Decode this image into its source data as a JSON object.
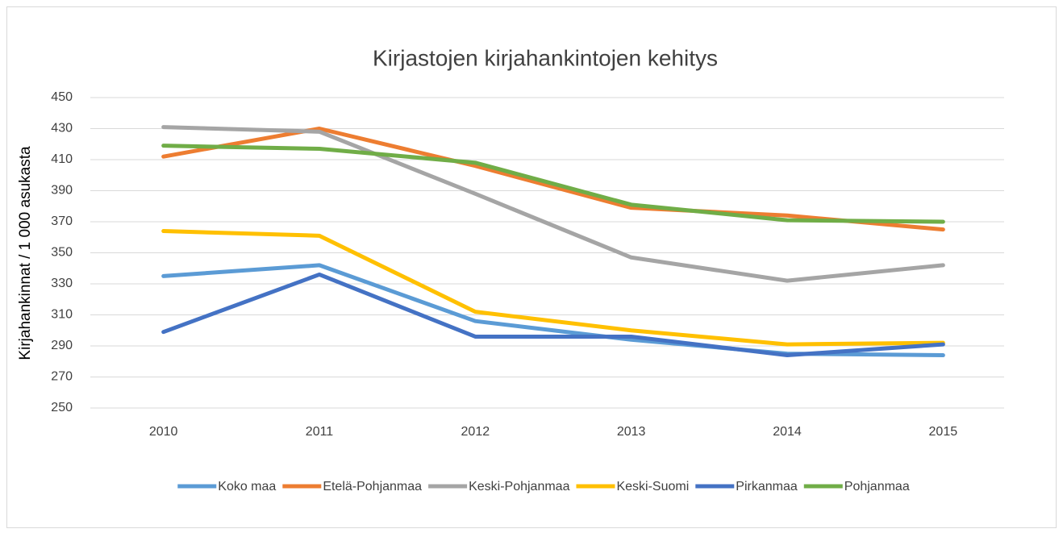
{
  "chart_data": {
    "type": "line",
    "title": "Kirjastojen kirjahankintojen kehitys",
    "y_label": "Kirjahankinnat / 1 000 asukasta",
    "categories": [
      "2010",
      "2011",
      "2012",
      "2013",
      "2014",
      "2015"
    ],
    "series": [
      {
        "name": "Koko maa",
        "color": "#5b9bd5",
        "values": [
          335,
          342,
          306,
          294,
          285,
          284
        ]
      },
      {
        "name": "Etelä-Pohjanmaa",
        "color": "#ed7d31",
        "values": [
          412,
          430,
          406,
          379,
          374,
          365
        ]
      },
      {
        "name": "Keski-Pohjanmaa",
        "color": "#a5a5a5",
        "values": [
          431,
          428,
          388,
          347,
          332,
          342
        ]
      },
      {
        "name": "Keski-Suomi",
        "color": "#ffc000",
        "values": [
          364,
          361,
          312,
          300,
          291,
          292
        ]
      },
      {
        "name": "Pirkanmaa",
        "color": "#4472c4",
        "values": [
          299,
          336,
          296,
          296,
          284,
          291
        ]
      },
      {
        "name": "Pohjanmaa",
        "color": "#70ad47",
        "values": [
          419,
          417,
          408,
          381,
          371,
          370
        ]
      }
    ],
    "ylim": [
      250,
      450
    ],
    "yticks": [
      250,
      270,
      290,
      310,
      330,
      350,
      370,
      390,
      410,
      430,
      450
    ],
    "grid": true,
    "legend": "bottom"
  }
}
